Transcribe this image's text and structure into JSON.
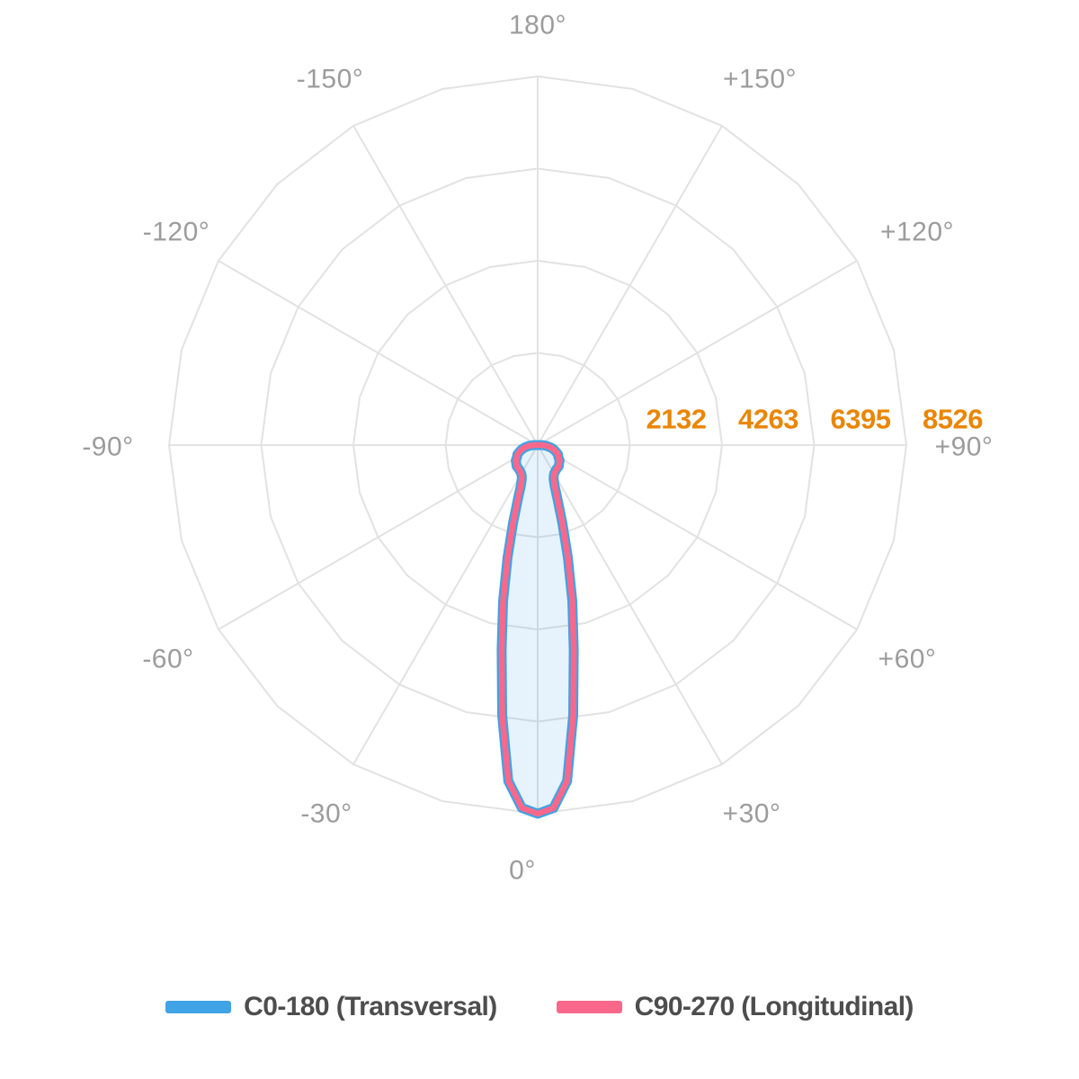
{
  "chart_data": {
    "type": "line",
    "subtype": "polar-photometric-distribution",
    "title": "",
    "rmax": 8526,
    "radial_ticks": [
      {
        "value": 2132,
        "label": "2132"
      },
      {
        "value": 4263,
        "label": "4263"
      },
      {
        "value": 6395,
        "label": "6395"
      },
      {
        "value": 8526,
        "label": "8526"
      }
    ],
    "angle_labels": [
      {
        "angle": 180,
        "label": "180°"
      },
      {
        "angle": -150,
        "label": "-150°"
      },
      {
        "angle": 150,
        "label": "+150°"
      },
      {
        "angle": -120,
        "label": "-120°"
      },
      {
        "angle": 120,
        "label": "+120°"
      },
      {
        "angle": -90,
        "label": "-90°"
      },
      {
        "angle": 90,
        "label": "+90°"
      },
      {
        "angle": -60,
        "label": "-60°"
      },
      {
        "angle": 60,
        "label": "+60°"
      },
      {
        "angle": -30,
        "label": "-30°"
      },
      {
        "angle": 30,
        "label": "+30°"
      },
      {
        "angle": 0,
        "label": "0°"
      }
    ],
    "grid": {
      "color": "#E2E2E2",
      "spoke_step_deg": 30,
      "rings": 4,
      "shown": true
    },
    "colors": {
      "radial_tick_label": "#EA8607",
      "angle_label": "#9C9C9C",
      "legend_text": "#4D4D4D"
    },
    "legend_position": "bottom",
    "series": [
      {
        "name": "C0-180 (Transversal)",
        "color": "#40A3E5",
        "fill": "rgba(64,163,229,0.13)",
        "symmetric": true,
        "gamma_deg": [
          0,
          2.5,
          5,
          7.5,
          10,
          12.5,
          15,
          17.5,
          20,
          22.5,
          25,
          27.5,
          30,
          35,
          40,
          45,
          50,
          55,
          60,
          65,
          70,
          75,
          80,
          85,
          90
        ],
        "values": [
          8526,
          8400,
          7800,
          6300,
          4800,
          3700,
          2700,
          1900,
          1350,
          1020,
          870,
          800,
          760,
          720,
          700,
          690,
          650,
          620,
          550,
          520,
          450,
          380,
          300,
          200,
          100
        ]
      },
      {
        "name": "C90-270 (Longitudinal)",
        "color": "#F9688B",
        "fill": "none",
        "symmetric": true,
        "gamma_deg": [
          0,
          2.5,
          5,
          7.5,
          10,
          12.5,
          15,
          17.5,
          20,
          22.5,
          25,
          27.5,
          30,
          35,
          40,
          45,
          50,
          55,
          60,
          65,
          70,
          75,
          80,
          85,
          90
        ],
        "values": [
          8526,
          8400,
          7800,
          6300,
          4800,
          3700,
          2700,
          1900,
          1350,
          1020,
          870,
          800,
          760,
          720,
          700,
          690,
          650,
          620,
          550,
          520,
          450,
          380,
          300,
          200,
          100
        ]
      }
    ]
  }
}
